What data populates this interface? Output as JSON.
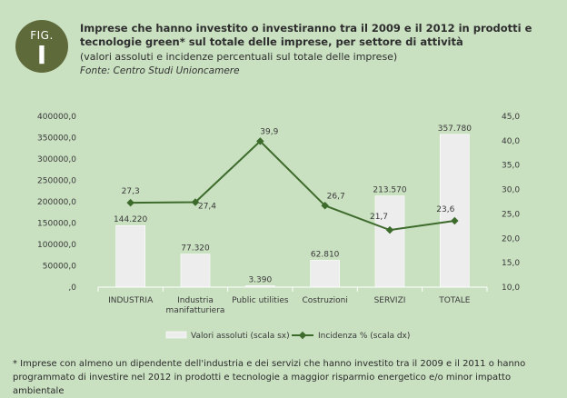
{
  "figure": {
    "label": "FIG.",
    "number": "I"
  },
  "header": {
    "title": "Imprese che hanno investito o investiranno tra il 2009 e il 2012 in prodotti e tecnologie green* sul totale delle imprese, per settore di attività",
    "subtitle": "(valori assoluti e incidenze percentuali sul totale delle imprese)",
    "source": "Fonte: Centro Studi Unioncamere"
  },
  "chart_data": {
    "type": "bar+line",
    "categories": [
      "INDUSTRIA",
      "Industria manifatturiera",
      "Public utilities",
      "Costruzioni",
      "SERVIZI",
      "TOTALE"
    ],
    "category_lines": [
      [
        "INDUSTRIA"
      ],
      [
        "Industria",
        "manifatturiera"
      ],
      [
        "Public utilities"
      ],
      [
        "Costruzioni"
      ],
      [
        "SERVIZI"
      ],
      [
        "TOTALE"
      ]
    ],
    "series": [
      {
        "name": "Valori assoluti (scala sx)",
        "kind": "bar",
        "axis": "left",
        "values": [
          144220,
          77320,
          3390,
          62810,
          213570,
          357780
        ],
        "labels": [
          "144.220",
          "77.320",
          "3.390",
          "62.810",
          "213.570",
          "357.780"
        ],
        "color": "#ededed"
      },
      {
        "name": "Incidenza % (scala dx)",
        "kind": "line",
        "axis": "right",
        "values": [
          27.3,
          27.4,
          39.9,
          26.7,
          21.7,
          23.6
        ],
        "labels": [
          "27,3",
          "27,4",
          "39,9",
          "26,7",
          "21,7",
          "23,6"
        ],
        "color": "#3d6b2c"
      }
    ],
    "y_left": {
      "range": [
        0,
        400000
      ],
      "ticks": [
        0,
        50000,
        100000,
        150000,
        200000,
        250000,
        300000,
        350000,
        400000
      ],
      "tick_labels": [
        ",0",
        "50000,0",
        "100000,0",
        "150000,0",
        "200000,0",
        "250000,0",
        "300000,0",
        "350000,0",
        "400000,0"
      ]
    },
    "y_right": {
      "range": [
        10,
        45
      ],
      "ticks": [
        10,
        15,
        20,
        25,
        30,
        35,
        40,
        45
      ],
      "tick_labels": [
        "10,0",
        "15,0",
        "20,0",
        "25,0",
        "30,0",
        "35,0",
        "40,0",
        "45,0"
      ]
    },
    "grid": false,
    "legend_position": "bottom"
  },
  "footnote": "* Imprese con almeno un dipendente dell'industria e dei servizi che hanno investito tra il 2009 e il 2011 o hanno programmato di investire nel 2012 in prodotti e tecnologie a maggior risparmio energetico e/o minor impatto ambientale"
}
